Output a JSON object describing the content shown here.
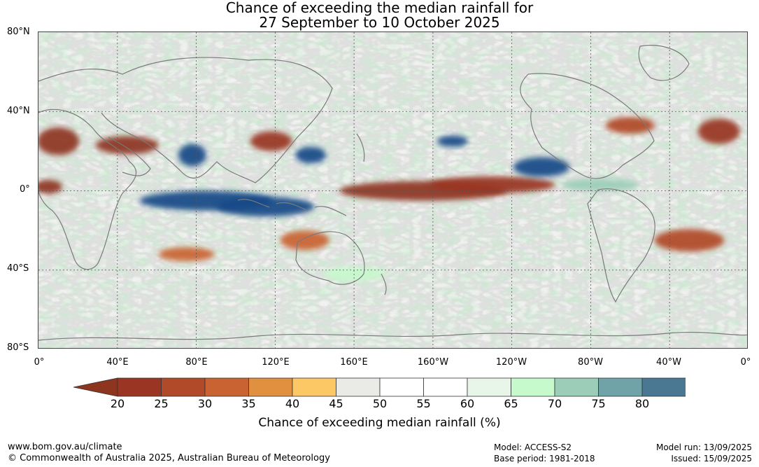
{
  "title": {
    "line1": "Chance of exceeding the median rainfall for",
    "line2": "27 September to 10 October 2025"
  },
  "map": {
    "projection": "equirectangular",
    "lon_range": [
      0,
      360
    ],
    "lat_range": [
      -80,
      80
    ],
    "gridlines": true,
    "y_labels": [
      "80°N",
      "40°N",
      "0°",
      "40°S",
      "80°S"
    ],
    "x_labels": [
      "0°",
      "40°E",
      "80°E",
      "120°E",
      "160°E",
      "160°W",
      "120°W",
      "80°W",
      "40°W",
      "0°"
    ],
    "anomaly_regions": [
      {
        "name": "equatorial-pacific-dry",
        "lon": 195,
        "lat": 0,
        "category": "20"
      },
      {
        "name": "central-pacific-dry",
        "lon": 230,
        "lat": 3,
        "category": "25"
      },
      {
        "name": "indian-ocean-wet",
        "lon": 85,
        "lat": -5,
        "category": "80"
      },
      {
        "name": "maritime-wet",
        "lon": 115,
        "lat": -8,
        "category": "80"
      },
      {
        "name": "east-pacific-wet",
        "lon": 255,
        "lat": 12,
        "category": "80"
      },
      {
        "name": "caribbean-wet",
        "lon": 285,
        "lat": 3,
        "category": "75"
      },
      {
        "name": "arabia-dry",
        "lon": 45,
        "lat": 23,
        "category": "20"
      },
      {
        "name": "north-africa-dry",
        "lon": 10,
        "lat": 25,
        "category": "20"
      },
      {
        "name": "west-africa-dry",
        "lon": 5,
        "lat": 2,
        "category": "20"
      },
      {
        "name": "bay-of-bengal-wet",
        "lon": 78,
        "lat": 18,
        "category": "80"
      },
      {
        "name": "east-asia-dry",
        "lon": 118,
        "lat": 25,
        "category": "25"
      },
      {
        "name": "japan-wet",
        "lon": 138,
        "lat": 18,
        "category": "80"
      },
      {
        "name": "south-atlantic-dry",
        "lon": 330,
        "lat": -25,
        "category": "30"
      },
      {
        "name": "atlantic-dry-ne",
        "lon": 345,
        "lat": 30,
        "category": "25"
      },
      {
        "name": "north-america-dry",
        "lon": 300,
        "lat": 33,
        "category": "30"
      },
      {
        "name": "australia-dry",
        "lon": 135,
        "lat": -25,
        "category": "35"
      },
      {
        "name": "southern-ocean-wet",
        "lon": 160,
        "lat": -42,
        "category": "70"
      },
      {
        "name": "south-indian-dry",
        "lon": 75,
        "lat": -32,
        "category": "35"
      },
      {
        "name": "central-pacific-wet",
        "lon": 210,
        "lat": 25,
        "category": "80"
      }
    ]
  },
  "colorbar": {
    "ticks": [
      "20",
      "25",
      "30",
      "35",
      "40",
      "45",
      "50",
      "55",
      "60",
      "65",
      "70",
      "75",
      "80"
    ],
    "colors": [
      "#993522",
      "#b04a28",
      "#c96432",
      "#e0903f",
      "#fcc765",
      "#eaeae6",
      "#ffffff",
      "#ffffff",
      "#e8f6ea",
      "#c6f9cc",
      "#9bcdb9",
      "#6fa3a8",
      "#4a7893"
    ],
    "below_color": "#8e3520",
    "above_color": "#184a87",
    "label": "Chance of exceeding median rainfall (%)"
  },
  "footer": {
    "url": "www.bom.gov.au/climate",
    "copyright": "© Commonwealth of Australia 2025, Australian Bureau of Meteorology",
    "model": "Model: ACCESS-S2",
    "base_period": "Base period: 1981-2018",
    "model_run": "Model run: 13/09/2025",
    "issued": "Issued: 15/09/2025"
  }
}
